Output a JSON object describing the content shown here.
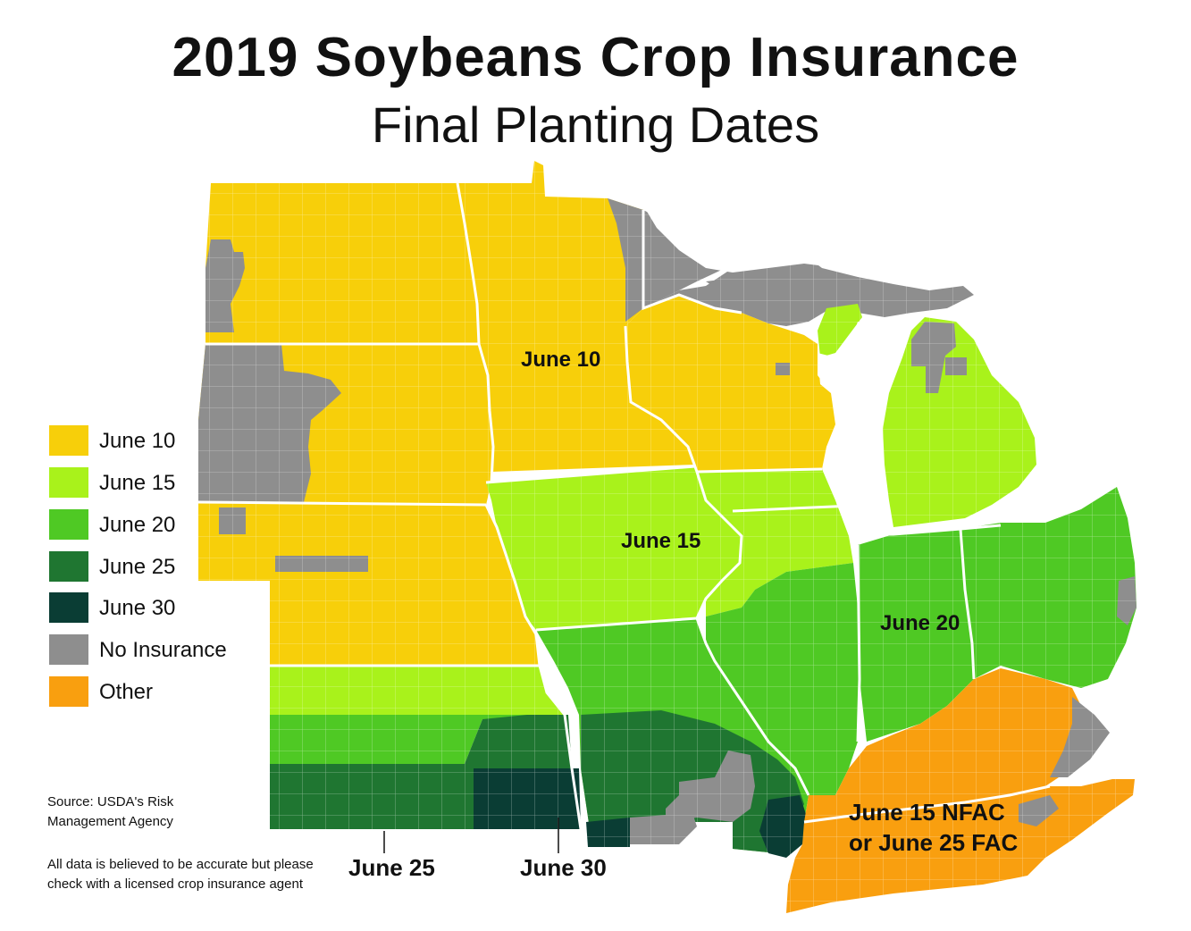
{
  "title": "2019 Soybeans Crop Insurance",
  "subtitle": "Final Planting Dates",
  "legend": [
    {
      "label": "June 10",
      "color": "#f7cf0a"
    },
    {
      "label": "June 15",
      "color": "#a9f21b"
    },
    {
      "label": "June 20",
      "color": "#4fc924"
    },
    {
      "label": "June 25",
      "color": "#1f7631"
    },
    {
      "label": "June 30",
      "color": "#0a3d34"
    },
    {
      "label": "No Insurance",
      "color": "#8e8e8e"
    },
    {
      "label": "Other",
      "color": "#f99f0f"
    }
  ],
  "map_labels": {
    "june10": "June 10",
    "june15": "June 15",
    "june20": "June 20",
    "nfac_line1": "June 15 NFAC",
    "nfac_line2": "or June 25 FAC",
    "june25": "June 25",
    "june30": "June 30"
  },
  "source_line1": "Source: USDA's Risk",
  "source_line2": "Management Agency",
  "disclaimer_line1": "All data is believed to be accurate but please",
  "disclaimer_line2": "check with a licensed crop insurance agent",
  "colors": {
    "june10": "#f7cf0a",
    "june15": "#a9f21b",
    "june20": "#4fc924",
    "june25": "#1f7631",
    "june30": "#0a3d34",
    "none": "#8e8e8e",
    "other": "#f99f0f",
    "border": "#ffffff"
  }
}
